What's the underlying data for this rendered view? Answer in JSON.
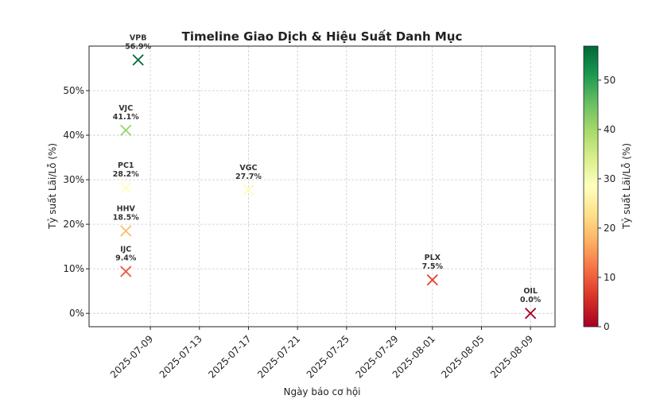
{
  "chart_data": {
    "type": "scatter",
    "title": "Timeline Giao Dịch & Hiệu Suất Danh Mục",
    "xlabel": "Ngày báo cơ hội",
    "ylabel": "Tỷ suất Lãi/Lỗ (%)",
    "colorbar_label": "Tỷ suất Lãi/Lỗ (%)",
    "x_ticks": [
      "2025-07-09",
      "2025-07-13",
      "2025-07-17",
      "2025-07-21",
      "2025-07-25",
      "2025-07-29",
      "2025-08-01",
      "2025-08-05",
      "2025-08-09"
    ],
    "y_ticks": [
      "0%",
      "10%",
      "20%",
      "30%",
      "40%",
      "50%"
    ],
    "y_tick_values": [
      0,
      10,
      20,
      30,
      40,
      50
    ],
    "colorbar_ticks": [
      "0",
      "10",
      "20",
      "30",
      "40",
      "50"
    ],
    "colorbar_tick_values": [
      0,
      10,
      20,
      30,
      40,
      50
    ],
    "ylim": [
      -3,
      60
    ],
    "xlim": [
      "2025-07-04",
      "2025-08-11"
    ],
    "colorbar_range": [
      0,
      56.9
    ],
    "grid": true,
    "marker": "x",
    "points": [
      {
        "ticker": "VPB",
        "date": "2025-07-08",
        "value": 56.9,
        "label": "56.9%"
      },
      {
        "ticker": "VJC",
        "date": "2025-07-07",
        "value": 41.1,
        "label": "41.1%"
      },
      {
        "ticker": "PC1",
        "date": "2025-07-07",
        "value": 28.2,
        "label": "28.2%"
      },
      {
        "ticker": "HHV",
        "date": "2025-07-07",
        "value": 18.5,
        "label": "18.5%"
      },
      {
        "ticker": "IJC",
        "date": "2025-07-07",
        "value": 9.4,
        "label": "9.4%"
      },
      {
        "ticker": "VGC",
        "date": "2025-07-17",
        "value": 27.7,
        "label": "27.7%"
      },
      {
        "ticker": "PLX",
        "date": "2025-08-01",
        "value": 7.5,
        "label": "7.5%"
      },
      {
        "ticker": "OIL",
        "date": "2025-08-09",
        "value": 0.0,
        "label": "0.0%"
      }
    ]
  }
}
